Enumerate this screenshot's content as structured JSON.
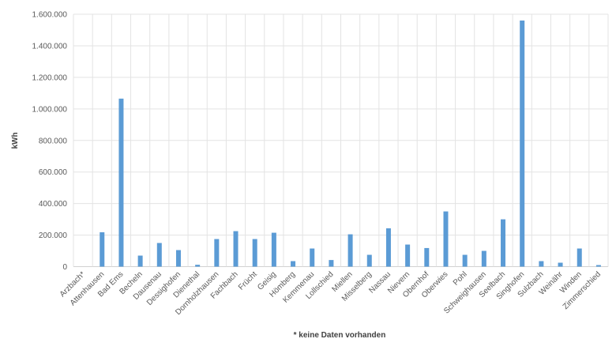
{
  "chart_data": {
    "type": "bar",
    "title": "",
    "xlabel": "",
    "ylabel": "kWh",
    "ylim": [
      0,
      1600000
    ],
    "yticks": [
      0,
      200000,
      400000,
      600000,
      800000,
      1000000,
      1200000,
      1400000,
      1600000
    ],
    "ytick_labels": [
      "0",
      "200.000",
      "400.000",
      "600.000",
      "800.000",
      "1.000.000",
      "1.200.000",
      "1.400.000",
      "1.600.000"
    ],
    "grid": true,
    "bar_color": "#5b9bd5",
    "categories": [
      "Arzbach*",
      "Attenhausen",
      "Bad Ems",
      "Becheln",
      "Dausenau",
      "Dessighofen",
      "Dienethal",
      "Dornholzhausen",
      "Fachbach",
      "Frücht",
      "Geisig",
      "Hömberg",
      "Kemmenau",
      "Lollschied",
      "Miellen",
      "Misselberg",
      "Nassau",
      "Nievern",
      "Obernhof",
      "Oberwies",
      "Pohl",
      "Schweighausen",
      "Seelbach",
      "Singhofen",
      "Sulzbach",
      "Weinähr",
      "Winden",
      "Zimmerschied"
    ],
    "values": [
      0,
      218000,
      1065000,
      70000,
      150000,
      105000,
      12000,
      175000,
      225000,
      175000,
      215000,
      35000,
      115000,
      42000,
      205000,
      75000,
      243000,
      140000,
      118000,
      350000,
      75000,
      100000,
      300000,
      1560000,
      35000,
      25000,
      115000,
      10000
    ],
    "footnote": "* keine Daten vorhanden"
  }
}
